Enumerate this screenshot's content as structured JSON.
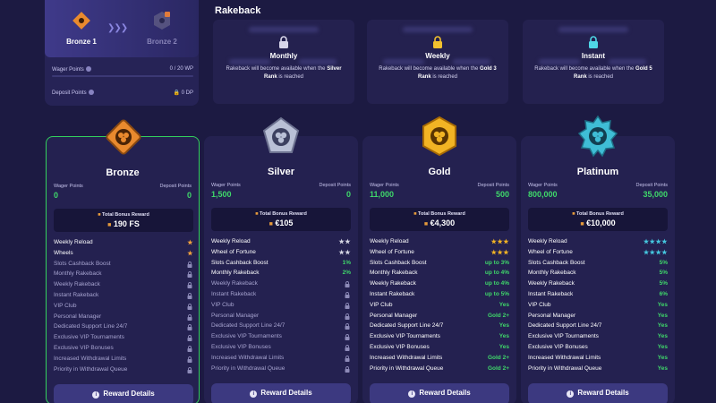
{
  "progress": {
    "current_rank": "Bronze 1",
    "next_rank": "Bronze 2",
    "wager_label": "Wager Points",
    "wager_value": "0 / 20 WP",
    "deposit_label": "Deposit Points",
    "deposit_value": "0 DP"
  },
  "rakeback": {
    "title": "Rakeback",
    "cards": [
      {
        "name": "Monthly",
        "desc_pre": "Rakeback will become available when the",
        "rank": "Silver Rank",
        "desc_post": "is reached",
        "lock_color": "#d8d6ea"
      },
      {
        "name": "Weekly",
        "desc_pre": "Rakeback will become available when the",
        "rank": "Gold 3 Rank",
        "desc_post": "is reached",
        "lock_color": "#f2c12e"
      },
      {
        "name": "Instant",
        "desc_pre": "Rakeback will become available when the",
        "rank": "Gold 5 Rank",
        "desc_post": "is reached",
        "lock_color": "#4fd6e6"
      }
    ]
  },
  "labels": {
    "wager_points": "Wager Points",
    "deposit_points": "Deposit Points",
    "total_bonus": "Total Bonus Reward",
    "reward_details": "Reward Details"
  },
  "tiers": [
    {
      "name": "Bronze",
      "wager": "0",
      "deposit": "0",
      "bonus": "190 FS",
      "badge_color": "#e98a2e",
      "perks": [
        {
          "name": "Weekly Reload",
          "value": "★",
          "kind": "star",
          "star": "bronze"
        },
        {
          "name": "Wheels",
          "value": "★",
          "kind": "star",
          "star": "bronze"
        },
        {
          "name": "Slots Cashback Boost",
          "kind": "lock"
        },
        {
          "name": "Monthly Rakeback",
          "kind": "lock"
        },
        {
          "name": "Weekly Rakeback",
          "kind": "lock"
        },
        {
          "name": "Instant Rakeback",
          "kind": "lock"
        },
        {
          "name": "VIP Club",
          "kind": "lock"
        },
        {
          "name": "Personal Manager",
          "kind": "lock"
        },
        {
          "name": "Dedicated Support Line 24/7",
          "kind": "lock"
        },
        {
          "name": "Exclusive VIP Tournaments",
          "kind": "lock"
        },
        {
          "name": "Exclusive VIP Bonuses",
          "kind": "lock"
        },
        {
          "name": "Increased Withdrawal Limits",
          "kind": "lock"
        },
        {
          "name": "Priority in Withdrawal Queue",
          "kind": "lock"
        }
      ]
    },
    {
      "name": "Silver",
      "wager": "1,500",
      "deposit": "0",
      "bonus": "€105",
      "badge_color": "#b9c0d6",
      "perks": [
        {
          "name": "Weekly Reload",
          "value": "★★",
          "kind": "star",
          "star": "silver"
        },
        {
          "name": "Wheel of Fortune",
          "value": "★★",
          "kind": "star",
          "star": "silver"
        },
        {
          "name": "Slots Cashback Boost",
          "value": "1%",
          "kind": "text"
        },
        {
          "name": "Monthly Rakeback",
          "value": "2%",
          "kind": "text"
        },
        {
          "name": "Weekly Rakeback",
          "kind": "lock"
        },
        {
          "name": "Instant Rakeback",
          "kind": "lock"
        },
        {
          "name": "VIP Club",
          "kind": "lock"
        },
        {
          "name": "Personal Manager",
          "kind": "lock"
        },
        {
          "name": "Dedicated Support Line 24/7",
          "kind": "lock"
        },
        {
          "name": "Exclusive VIP Tournaments",
          "kind": "lock"
        },
        {
          "name": "Exclusive VIP Bonuses",
          "kind": "lock"
        },
        {
          "name": "Increased Withdrawal Limits",
          "kind": "lock"
        },
        {
          "name": "Priority in Withdrawal Queue",
          "kind": "lock"
        }
      ]
    },
    {
      "name": "Gold",
      "wager": "11,000",
      "deposit": "500",
      "bonus": "€4,300",
      "badge_color": "#f2b424",
      "perks": [
        {
          "name": "Weekly Reload",
          "value": "★★★",
          "kind": "star",
          "star": "gold"
        },
        {
          "name": "Wheel of Fortune",
          "value": "★★★",
          "kind": "star",
          "star": "gold"
        },
        {
          "name": "Slots Cashback Boost",
          "value": "up to 3%",
          "kind": "text"
        },
        {
          "name": "Monthly Rakeback",
          "value": "up to 4%",
          "kind": "text"
        },
        {
          "name": "Weekly Rakeback",
          "value": "up to 4%",
          "kind": "text"
        },
        {
          "name": "Instant Rakeback",
          "value": "up to 5%",
          "kind": "text"
        },
        {
          "name": "VIP Club",
          "value": "Yes",
          "kind": "text"
        },
        {
          "name": "Personal Manager",
          "value": "Gold 2+",
          "kind": "text"
        },
        {
          "name": "Dedicated Support Line 24/7",
          "value": "Yes",
          "kind": "text"
        },
        {
          "name": "Exclusive VIP Tournaments",
          "value": "Yes",
          "kind": "text"
        },
        {
          "name": "Exclusive VIP Bonuses",
          "value": "Yes",
          "kind": "text"
        },
        {
          "name": "Increased Withdrawal Limits",
          "value": "Gold 2+",
          "kind": "text"
        },
        {
          "name": "Priority in Withdrawal Queue",
          "value": "Gold 2+",
          "kind": "text"
        }
      ]
    },
    {
      "name": "Platinum",
      "wager": "800,000",
      "deposit": "35,000",
      "bonus": "€10,000",
      "badge_color": "#3fbdd6",
      "perks": [
        {
          "name": "Weekly Reload",
          "value": "★★★★",
          "kind": "star",
          "star": "plat"
        },
        {
          "name": "Wheel of Fortune",
          "value": "★★★★",
          "kind": "star",
          "star": "plat"
        },
        {
          "name": "Slots Cashback Boost",
          "value": "5%",
          "kind": "text"
        },
        {
          "name": "Monthly Rakeback",
          "value": "5%",
          "kind": "text"
        },
        {
          "name": "Weekly Rakeback",
          "value": "5%",
          "kind": "text"
        },
        {
          "name": "Instant Rakeback",
          "value": "6%",
          "kind": "text"
        },
        {
          "name": "VIP Club",
          "value": "Yes",
          "kind": "text"
        },
        {
          "name": "Personal Manager",
          "value": "Yes",
          "kind": "text"
        },
        {
          "name": "Dedicated Support Line 24/7",
          "value": "Yes",
          "kind": "text"
        },
        {
          "name": "Exclusive VIP Tournaments",
          "value": "Yes",
          "kind": "text"
        },
        {
          "name": "Exclusive VIP Bonuses",
          "value": "Yes",
          "kind": "text"
        },
        {
          "name": "Increased Withdrawal Limits",
          "value": "Yes",
          "kind": "text"
        },
        {
          "name": "Priority in Withdrawal Queue",
          "value": "Yes",
          "kind": "text"
        }
      ]
    }
  ]
}
